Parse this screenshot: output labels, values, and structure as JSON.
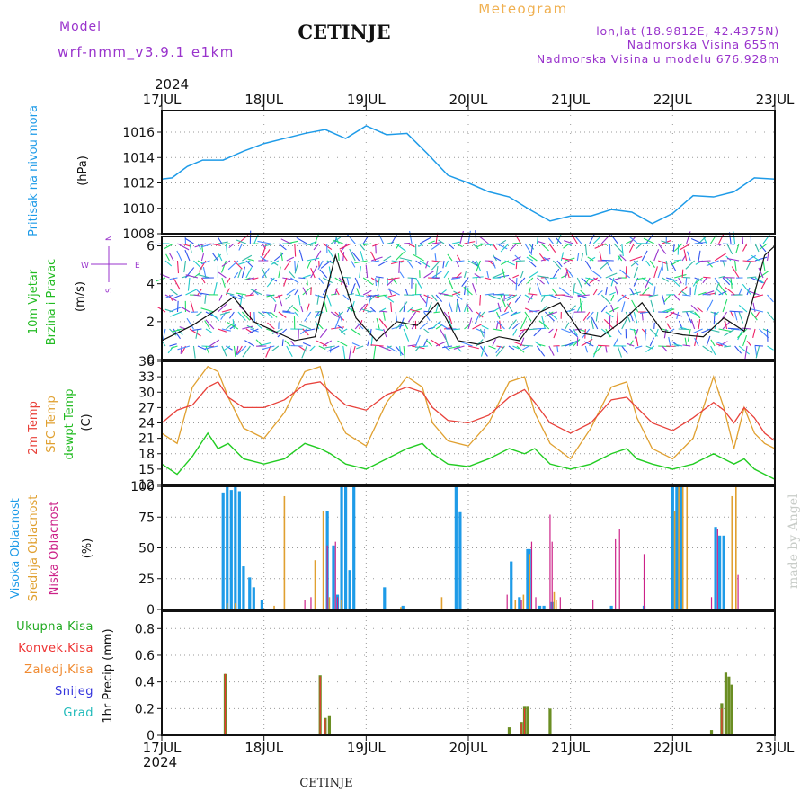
{
  "header": {
    "model_label": "Model",
    "model_name": "wrf-nmm_v3.9.1 e1km",
    "station": "CETINJE",
    "chart_title": "Meteogram",
    "lonlat": "lon,lat (18.9812E, 42.4375N)",
    "elevation": "Nadmorska Visina 655m",
    "model_elevation": "Nadmorska Visina u modelu 676.928m",
    "year": "2024",
    "footer_station": "CETINJE",
    "credit": "made by Angel"
  },
  "colors": {
    "pressure": "#1e9be8",
    "temp2m": "#e8413a",
    "sfc": "#e0a030",
    "dewpt": "#22cc22",
    "high_cloud": "#1e9be8",
    "mid_cloud": "#e0a030",
    "low_cloud": "#cc2288",
    "total_precip": "#22aa22",
    "conv_precip": "#ee3333",
    "strat_precip": "#f08a30",
    "snow": "#3333dd",
    "grad": "#22bbbb",
    "wind_compass": "#9933cc"
  },
  "x_axis": {
    "top_labels": [
      "17JUL",
      "18JUL",
      "19JUL",
      "20JUL",
      "21JUL",
      "22JUL",
      "23JUL"
    ],
    "bottom_labels": [
      "17JUL",
      "18JUL",
      "19JUL",
      "20JUL",
      "21JUL",
      "22JUL",
      "23JUL"
    ],
    "range_days": [
      0,
      6
    ]
  },
  "chart_data": [
    {
      "type": "line",
      "panel": "pressure",
      "ylabel_side": "Pritisak na nivou mora",
      "unit": "(hPa)",
      "yticks": [
        "1016",
        "1014",
        "1012",
        "1010",
        "1008"
      ],
      "ylim": [
        1008,
        1017.7
      ],
      "x_days": [
        0,
        0.1,
        0.25,
        0.4,
        0.6,
        0.8,
        1.0,
        1.2,
        1.4,
        1.6,
        1.8,
        2.0,
        2.2,
        2.4,
        2.6,
        2.8,
        3.0,
        3.2,
        3.4,
        3.6,
        3.8,
        4.0,
        4.2,
        4.4,
        4.6,
        4.8,
        5.0,
        5.2,
        5.4,
        5.6,
        5.8,
        6.0
      ],
      "series": [
        {
          "values": [
            1012.3,
            1012.4,
            1013.3,
            1013.8,
            1013.8,
            1014.5,
            1015.1,
            1015.5,
            1015.9,
            1016.2,
            1015.5,
            1016.5,
            1015.8,
            1015.9,
            1014.3,
            1012.6,
            1012.0,
            1011.3,
            1010.9,
            1009.9,
            1009.0,
            1009.4,
            1009.4,
            1009.9,
            1009.7,
            1008.8,
            1009.6,
            1011.0,
            1010.9,
            1011.3,
            1012.4,
            1012.3
          ]
        }
      ],
      "grid": true
    },
    {
      "type": "line",
      "panel": "wind",
      "ylabel_side": [
        "10m Vjetar",
        "Brzina i Pravac"
      ],
      "unit": "(m/s)",
      "compass": {
        "n": "N",
        "e": "E",
        "w": "W",
        "s": "S"
      },
      "yticks": [
        "6",
        "4",
        "2",
        "0"
      ],
      "ylim": [
        0,
        6.5
      ],
      "x_days": [
        0,
        0.3,
        0.5,
        0.7,
        0.9,
        1.1,
        1.3,
        1.5,
        1.7,
        1.9,
        2.1,
        2.3,
        2.5,
        2.7,
        2.9,
        3.1,
        3.3,
        3.5,
        3.7,
        3.9,
        4.1,
        4.3,
        4.5,
        4.7,
        4.9,
        5.1,
        5.3,
        5.5,
        5.7,
        5.9,
        6.0
      ],
      "series": [
        {
          "values": [
            1.0,
            1.8,
            2.5,
            3.3,
            2.0,
            1.5,
            1.0,
            1.2,
            5.5,
            2.2,
            1.0,
            2.0,
            1.8,
            3.0,
            1.0,
            0.8,
            1.2,
            1.0,
            2.5,
            3.0,
            1.4,
            1.2,
            2.0,
            3.0,
            1.5,
            1.3,
            1.2,
            2.2,
            1.5,
            5.5,
            6.0
          ]
        }
      ],
      "grid": true
    },
    {
      "type": "line",
      "panel": "temperature",
      "ylabel_side": [
        "2m Temp",
        "SFC Temp",
        "dewpt Temp"
      ],
      "unit": "(C)",
      "yticks": [
        "36",
        "33",
        "30",
        "27",
        "24",
        "21",
        "18",
        "15",
        "12"
      ],
      "ylim": [
        12,
        36
      ],
      "x_days": [
        0,
        0.15,
        0.3,
        0.45,
        0.55,
        0.65,
        0.8,
        1.0,
        1.2,
        1.4,
        1.55,
        1.65,
        1.8,
        2.0,
        2.2,
        2.4,
        2.55,
        2.65,
        2.8,
        3.0,
        3.2,
        3.4,
        3.55,
        3.65,
        3.8,
        4.0,
        4.2,
        4.4,
        4.55,
        4.65,
        4.8,
        5.0,
        5.2,
        5.4,
        5.5,
        5.6,
        5.7,
        5.8,
        5.9,
        6.0
      ],
      "series": [
        {
          "name": "2m Temp",
          "values": [
            24,
            26.5,
            27.5,
            31,
            32,
            29,
            27,
            27,
            28.5,
            31.5,
            32,
            30,
            27.5,
            26.5,
            29.5,
            31,
            30,
            27,
            24.5,
            24,
            25.5,
            29,
            30.5,
            28,
            24,
            22,
            24,
            28.5,
            29,
            27,
            24,
            22.5,
            25,
            28,
            26.5,
            24,
            27,
            25,
            22,
            20.5
          ]
        },
        {
          "name": "SFC Temp",
          "values": [
            22,
            20,
            31,
            35,
            34,
            29,
            23,
            21,
            26,
            34,
            35,
            28,
            22,
            19.5,
            28,
            33,
            31,
            24,
            20.5,
            19.5,
            24,
            32,
            33,
            26,
            20,
            17,
            23,
            31,
            32,
            25,
            19,
            17,
            21,
            33,
            27,
            19,
            27,
            22,
            20,
            19
          ]
        },
        {
          "name": "dewpt Temp",
          "values": [
            16,
            14,
            17.5,
            22,
            19,
            20,
            17,
            16,
            17,
            20,
            19,
            18,
            16,
            15,
            17,
            19,
            20,
            18,
            16,
            15.5,
            17,
            19,
            18,
            19,
            16,
            15,
            16,
            18,
            19,
            17,
            16,
            15,
            16,
            18,
            17,
            16,
            17,
            15,
            14,
            13
          ]
        }
      ],
      "grid": true
    },
    {
      "type": "bar",
      "panel": "clouds",
      "ylabel_side": [
        "Visoka Oblacnost",
        "Srednja Oblacnost",
        "Niska Oblacnost"
      ],
      "unit": "(%)",
      "yticks": [
        "100",
        "75",
        "50",
        "25",
        "0"
      ],
      "ylim": [
        0,
        100
      ],
      "series": [
        {
          "name": "Visoka Oblacnost",
          "points": [
            [
              0.6,
              95
            ],
            [
              0.64,
              100
            ],
            [
              0.68,
              97
            ],
            [
              0.72,
              100
            ],
            [
              0.76,
              96
            ],
            [
              0.8,
              35
            ],
            [
              0.86,
              26
            ],
            [
              0.9,
              18
            ],
            [
              0.98,
              8
            ],
            [
              1.62,
              80
            ],
            [
              1.68,
              52
            ],
            [
              1.72,
              12
            ],
            [
              1.76,
              100
            ],
            [
              1.8,
              100
            ],
            [
              1.84,
              32
            ],
            [
              1.88,
              100
            ],
            [
              2.18,
              18
            ],
            [
              2.36,
              3
            ],
            [
              2.88,
              100
            ],
            [
              2.92,
              79
            ],
            [
              3.42,
              39
            ],
            [
              3.5,
              10
            ],
            [
              3.58,
              49
            ],
            [
              3.6,
              49
            ],
            [
              3.7,
              3
            ],
            [
              3.74,
              3
            ],
            [
              3.82,
              6
            ],
            [
              4.4,
              3
            ],
            [
              4.72,
              3
            ],
            [
              5.0,
              100
            ],
            [
              5.04,
              100
            ],
            [
              5.08,
              100
            ],
            [
              5.42,
              67
            ],
            [
              5.46,
              60
            ],
            [
              5.5,
              60
            ]
          ]
        },
        {
          "name": "Srednja Oblacnost",
          "points": [
            [
              0.64,
              5
            ],
            [
              0.72,
              5
            ],
            [
              1.1,
              3
            ],
            [
              1.2,
              92
            ],
            [
              1.5,
              40
            ],
            [
              1.58,
              80
            ],
            [
              1.64,
              10
            ],
            [
              1.76,
              8
            ],
            [
              2.34,
              2
            ],
            [
              2.74,
              10
            ],
            [
              3.46,
              8
            ],
            [
              3.54,
              12
            ],
            [
              3.6,
              45
            ],
            [
              3.84,
              14
            ],
            [
              3.86,
              8
            ],
            [
              5.02,
              80
            ],
            [
              5.06,
              100
            ],
            [
              5.1,
              100
            ],
            [
              5.14,
              100
            ],
            [
              5.58,
              92
            ],
            [
              5.62,
              100
            ]
          ]
        },
        {
          "name": "Niska Oblacnost",
          "points": [
            [
              1.4,
              8
            ],
            [
              1.46,
              10
            ],
            [
              1.62,
              52
            ],
            [
              1.7,
              55
            ],
            [
              1.72,
              10
            ],
            [
              3.38,
              12
            ],
            [
              3.52,
              8
            ],
            [
              3.62,
              55
            ],
            [
              3.66,
              10
            ],
            [
              3.8,
              77
            ],
            [
              3.82,
              55
            ],
            [
              3.9,
              10
            ],
            [
              4.22,
              8
            ],
            [
              4.44,
              57
            ],
            [
              4.48,
              65
            ],
            [
              4.72,
              45
            ],
            [
              5.38,
              10
            ],
            [
              5.44,
              65
            ],
            [
              5.64,
              28
            ]
          ]
        }
      ],
      "grid": true
    },
    {
      "type": "bar",
      "panel": "precip",
      "legend": [
        "Ukupna Kisa",
        "Konvek.Kisa",
        "Zaledj.Kisa",
        "Snijeg",
        "Grad"
      ],
      "unit": "1hr Precip (mm)",
      "yticks": [
        "0.8",
        "0.6",
        "0.4",
        "0.2",
        "0"
      ],
      "ylim": [
        0,
        0.93
      ],
      "series": [
        {
          "name": "Ukupna Kisa",
          "points": [
            [
              0.62,
              0.46
            ],
            [
              1.55,
              0.45
            ],
            [
              1.6,
              0.13
            ],
            [
              1.64,
              0.15
            ],
            [
              3.4,
              0.06
            ],
            [
              3.52,
              0.1
            ],
            [
              3.55,
              0.22
            ],
            [
              3.58,
              0.22
            ],
            [
              3.8,
              0.2
            ],
            [
              5.38,
              0.04
            ],
            [
              5.48,
              0.24
            ],
            [
              5.52,
              0.47
            ],
            [
              5.55,
              0.44
            ],
            [
              5.58,
              0.38
            ]
          ]
        },
        {
          "name": "Konvek.Kisa",
          "points": [
            [
              0.62,
              0.46
            ],
            [
              1.55,
              0.44
            ],
            [
              1.6,
              0.12
            ],
            [
              3.52,
              0.09
            ],
            [
              3.55,
              0.2
            ],
            [
              5.48,
              0.2
            ]
          ]
        }
      ],
      "grid": true
    }
  ]
}
